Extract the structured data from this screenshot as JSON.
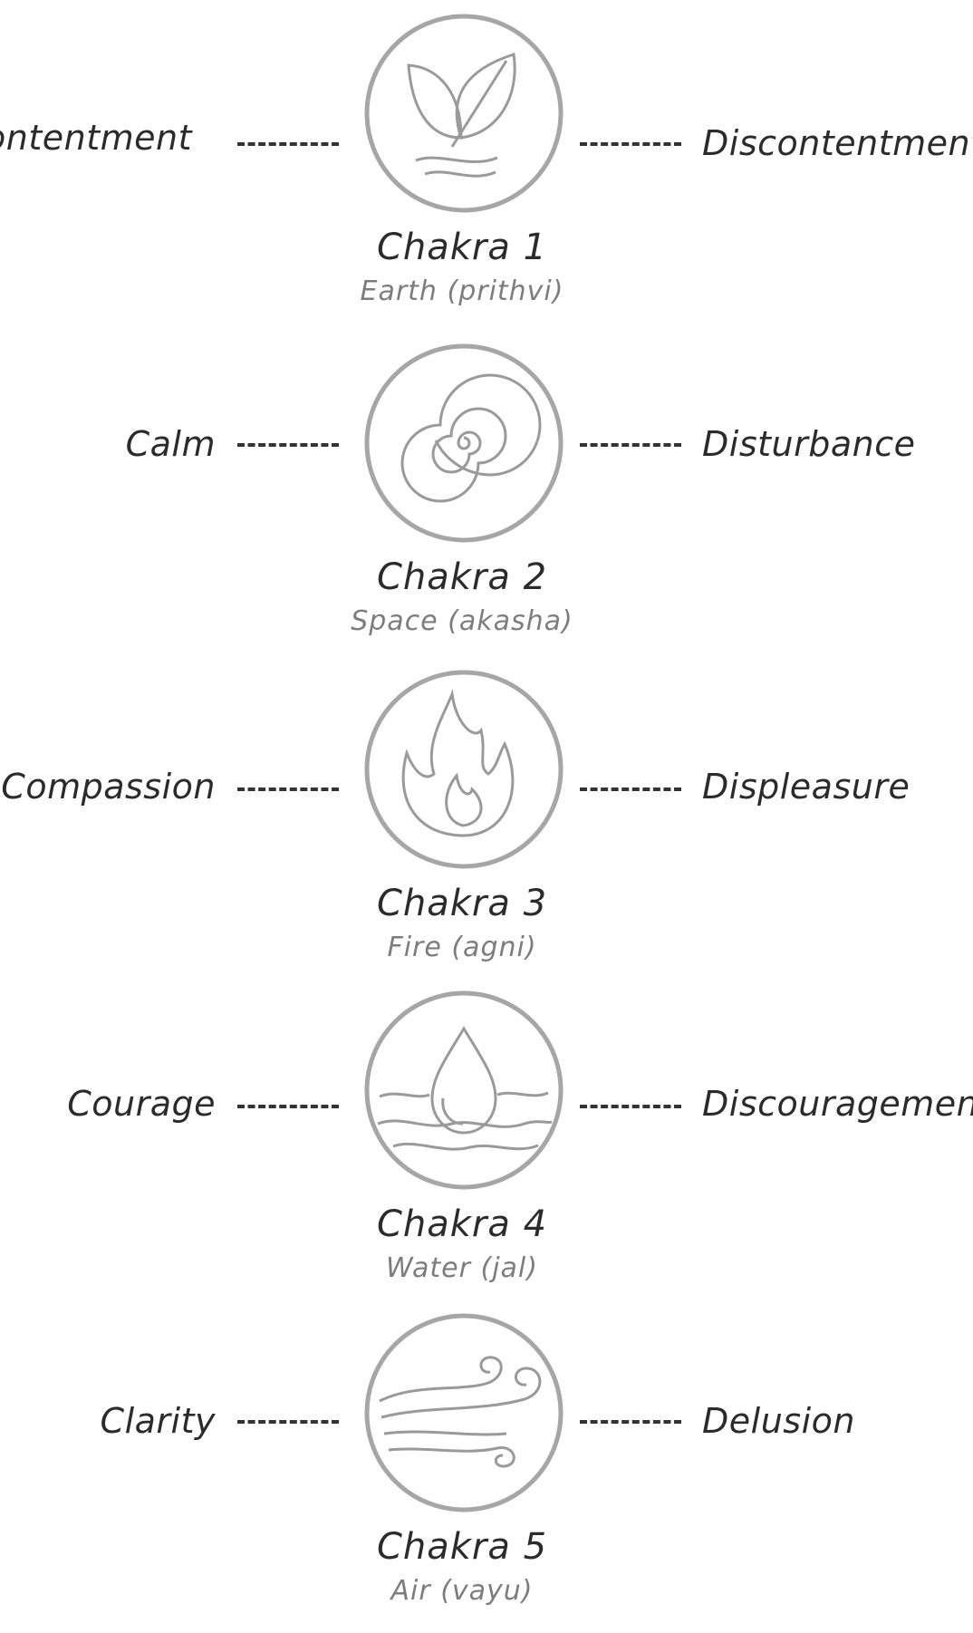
{
  "chakras": [
    {
      "title": "Chakra 1",
      "element": "Earth (prithvi)",
      "left": "Contentment",
      "right": "Discontentment",
      "icon": "leaf-icon"
    },
    {
      "title": "Chakra 2",
      "element": "Space (akasha)",
      "left": "Calm",
      "right": "Disturbance",
      "icon": "spiral-icon"
    },
    {
      "title": "Chakra 3",
      "element": "Fire (agni)",
      "left": "Compassion",
      "right": "Displeasure",
      "icon": "flame-icon"
    },
    {
      "title": "Chakra 4",
      "element": "Water (jal)",
      "left": "Courage",
      "right": "Discouragement",
      "icon": "water-drop-icon"
    },
    {
      "title": "Chakra 5",
      "element": "Air (vayu)",
      "left": "Clarity",
      "right": "Delusion",
      "icon": "wind-icon"
    }
  ],
  "colors": {
    "circle": "#a6a6a6",
    "icon": "#9a9a9a",
    "text": "#2b2b2b",
    "subtext": "#7d7d7d"
  }
}
